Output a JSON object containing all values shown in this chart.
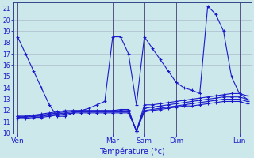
{
  "xlabel": "Température (°c)",
  "background_color": "#cce8ea",
  "grid_color": "#aabbcc",
  "line_color": "#1a1acc",
  "ylim": [
    10,
    21.5
  ],
  "yticks": [
    10,
    11,
    12,
    13,
    14,
    15,
    16,
    17,
    18,
    19,
    20,
    21
  ],
  "day_labels": [
    "Ven",
    "Mar",
    "Sam",
    "Dim",
    "Lun"
  ],
  "day_tick_positions": [
    0,
    12,
    16,
    20,
    28
  ],
  "vline_positions": [
    0,
    12,
    16,
    20,
    28
  ],
  "n_points": 30,
  "main_y": [
    18.5,
    17.0,
    15.5,
    14.0,
    12.5,
    11.5,
    11.5,
    11.8,
    12.0,
    12.2,
    12.5,
    12.8,
    18.5,
    18.5,
    17.0,
    12.5,
    18.5,
    17.5,
    16.5,
    15.5,
    14.5,
    14.0,
    13.8,
    13.5,
    21.2,
    20.5,
    19.0,
    15.0,
    13.5,
    13.0
  ],
  "flat1_y": [
    11.5,
    11.5,
    11.6,
    11.7,
    11.8,
    11.9,
    12.0,
    12.0,
    12.0,
    12.0,
    12.0,
    12.0,
    12.0,
    12.1,
    12.1,
    10.2,
    12.5,
    12.5,
    12.6,
    12.7,
    12.8,
    12.9,
    13.0,
    13.1,
    13.2,
    13.3,
    13.4,
    13.5,
    13.5,
    13.3
  ],
  "flat2_y": [
    11.5,
    11.5,
    11.5,
    11.6,
    11.7,
    11.8,
    11.9,
    12.0,
    12.0,
    12.0,
    12.0,
    12.0,
    12.0,
    12.0,
    12.0,
    10.2,
    12.2,
    12.3,
    12.4,
    12.5,
    12.6,
    12.7,
    12.8,
    12.9,
    13.0,
    13.1,
    13.2,
    13.2,
    13.2,
    13.0
  ],
  "flat3_y": [
    11.4,
    11.4,
    11.5,
    11.5,
    11.6,
    11.7,
    11.8,
    11.9,
    11.9,
    11.9,
    11.9,
    11.9,
    11.9,
    11.9,
    11.9,
    10.2,
    12.0,
    12.1,
    12.2,
    12.3,
    12.4,
    12.5,
    12.6,
    12.7,
    12.8,
    12.9,
    13.0,
    13.0,
    13.0,
    12.8
  ],
  "flat4_y": [
    11.3,
    11.3,
    11.4,
    11.4,
    11.5,
    11.6,
    11.7,
    11.8,
    11.8,
    11.8,
    11.8,
    11.8,
    11.8,
    11.8,
    11.8,
    10.2,
    11.9,
    12.0,
    12.1,
    12.2,
    12.3,
    12.4,
    12.4,
    12.5,
    12.6,
    12.7,
    12.8,
    12.8,
    12.8,
    12.6
  ]
}
